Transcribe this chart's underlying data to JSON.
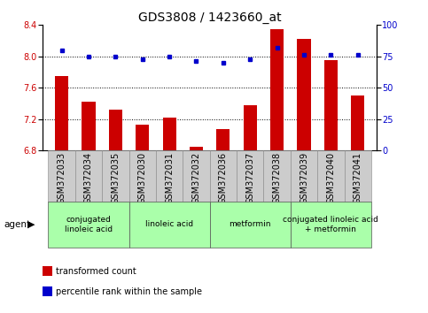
{
  "title": "GDS3808 / 1423660_at",
  "samples": [
    "GSM372033",
    "GSM372034",
    "GSM372035",
    "GSM372030",
    "GSM372031",
    "GSM372032",
    "GSM372036",
    "GSM372037",
    "GSM372038",
    "GSM372039",
    "GSM372040",
    "GSM372041"
  ],
  "transformed_count": [
    7.75,
    7.42,
    7.32,
    7.13,
    7.22,
    6.84,
    7.07,
    7.37,
    8.35,
    8.22,
    7.95,
    7.5
  ],
  "percentile_rank": [
    80,
    75,
    75,
    73,
    75,
    71,
    70,
    73,
    82,
    76,
    76,
    76
  ],
  "ylim_left": [
    6.8,
    8.4
  ],
  "ylim_right": [
    0,
    100
  ],
  "yticks_left": [
    6.8,
    7.2,
    7.6,
    8.0,
    8.4
  ],
  "yticks_right": [
    0,
    25,
    50,
    75,
    100
  ],
  "bar_color": "#cc0000",
  "dot_color": "#0000cc",
  "grid_color": "#000000",
  "agent_groups": [
    {
      "label": "conjugated\nlinoleic acid",
      "start": 0,
      "end": 3,
      "color": "#aaffaa"
    },
    {
      "label": "linoleic acid",
      "start": 3,
      "end": 6,
      "color": "#aaffaa"
    },
    {
      "label": "metformin",
      "start": 6,
      "end": 9,
      "color": "#aaffaa"
    },
    {
      "label": "conjugated linoleic acid\n+ metformin",
      "start": 9,
      "end": 12,
      "color": "#aaffaa"
    }
  ],
  "legend_items": [
    {
      "label": "transformed count",
      "color": "#cc0000",
      "marker": "s"
    },
    {
      "label": "percentile rank within the sample",
      "color": "#0000cc",
      "marker": "s"
    }
  ],
  "xlabel_bg_color": "#cccccc",
  "agent_label": "agent",
  "title_fontsize": 10,
  "tick_fontsize": 7,
  "bar_width": 0.5
}
